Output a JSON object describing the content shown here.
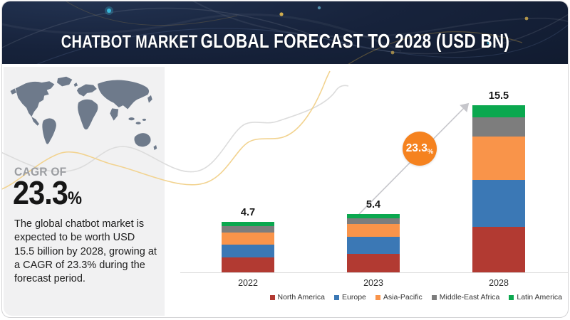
{
  "header": {
    "title_part1": "CHATBOT MARKET",
    "title_part2": "GLOBAL FORECAST TO 2028 (USD BN)"
  },
  "sidebar": {
    "cagr_label": "CAGR OF",
    "cagr_value": "23.3",
    "cagr_unit": "%",
    "description": "The global chatbot market is expected to be worth USD 15.5 billion by 2028, growing at a CAGR of 23.3% during the forecast period."
  },
  "chart_data": {
    "type": "bar",
    "stacked": true,
    "title": "CHATBOT MARKET GLOBAL FORECAST TO 2028 (USD BN)",
    "unit": "USD BN",
    "categories": [
      "2022",
      "2023",
      "2028"
    ],
    "totals": [
      4.7,
      5.4,
      15.5
    ],
    "series": [
      {
        "name": "North America",
        "color": "#b23a32",
        "values": [
          1.4,
          1.7,
          4.2
        ]
      },
      {
        "name": "Europe",
        "color": "#3b78b5",
        "values": [
          1.2,
          1.6,
          4.4
        ]
      },
      {
        "name": "Asia-Pacific",
        "color": "#f9944a",
        "values": [
          1.1,
          1.2,
          4.0
        ]
      },
      {
        "name": "Middle-East Africa",
        "color": "#7d7d7d",
        "values": [
          0.6,
          0.5,
          1.8
        ]
      },
      {
        "name": "Latin America",
        "color": "#0ba84f",
        "values": [
          0.4,
          0.4,
          1.1
        ]
      }
    ],
    "growth_annotation": {
      "value": "23.3",
      "unit": "%"
    },
    "legend_position": "bottom-right",
    "ylim": [
      0,
      16
    ],
    "gridlines": false
  },
  "colors": {
    "banner_bg": "#17233c",
    "accent_orange": "#f5821f",
    "panel_bg": "#f1f1f2",
    "map_fill": "#6e7a8b",
    "axis_line": "#dcdcdc",
    "curve_gray": "#dcdcdc",
    "curve_gold": "#f2d390"
  }
}
